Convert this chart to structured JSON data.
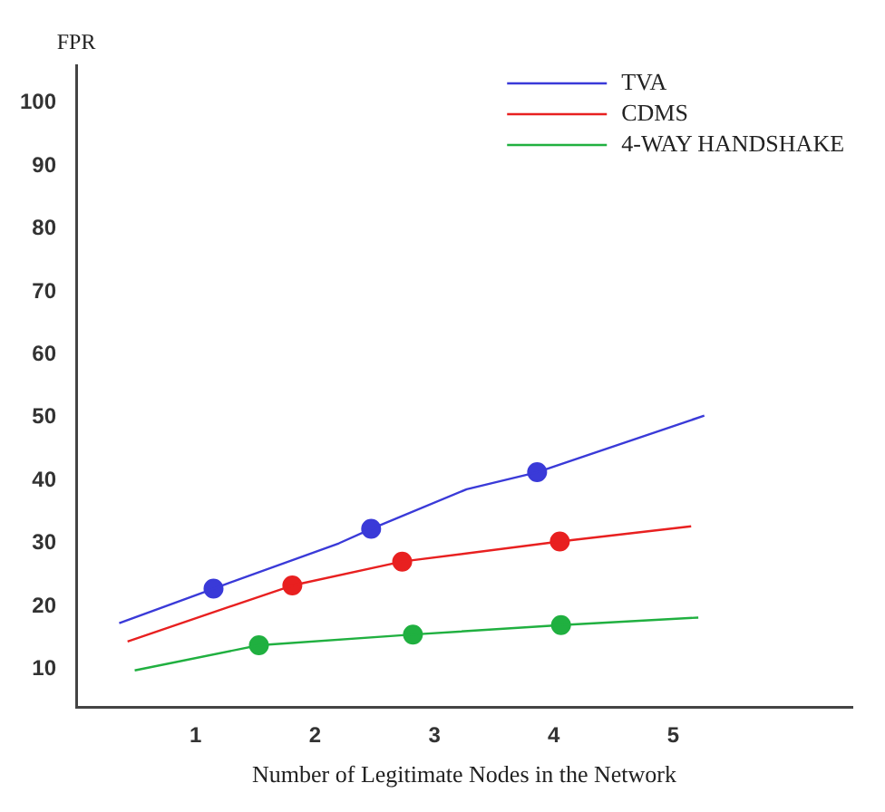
{
  "chart_data": {
    "type": "line",
    "xlabel": "Number of Legitimate Nodes in the Network",
    "ylabel": "FPR",
    "xlim": [
      0,
      6.5
    ],
    "ylim": [
      4,
      106
    ],
    "xticks": [
      1,
      2,
      3,
      4,
      5
    ],
    "yticks": [
      10,
      20,
      30,
      40,
      50,
      60,
      70,
      80,
      90,
      100
    ],
    "grid": false,
    "legend": "top right",
    "series": [
      {
        "name": "TVA",
        "color": "#3a3ad8",
        "marker": "none",
        "x": [
          0.36,
          1.15,
          2.2,
          2.47,
          3.27,
          3.86,
          5.26
        ],
        "values": [
          17.3,
          22.8,
          30.0,
          32.3,
          38.6,
          41.3,
          50.3
        ]
      },
      {
        "name": "CDMS",
        "color": "#e82020",
        "marker": "none",
        "x": [
          0.43,
          1.81,
          2.73,
          4.05,
          5.15
        ],
        "values": [
          14.4,
          23.3,
          27.1,
          30.3,
          32.7
        ]
      },
      {
        "name": "4-WAY HANDSHAKE",
        "color": "#20b040",
        "marker": "none",
        "x": [
          0.49,
          1.53,
          2.82,
          4.06,
          5.21
        ],
        "values": [
          9.8,
          13.8,
          15.5,
          17.0,
          18.2
        ]
      },
      {
        "type": "scatter",
        "color": "#3a3ad8",
        "marker": "circle",
        "x": [
          1.15,
          2.47,
          3.86
        ],
        "values": [
          22.8,
          32.3,
          41.3
        ]
      },
      {
        "type": "scatter",
        "color": "#e82020",
        "marker": "circle",
        "x": [
          1.81,
          2.73,
          4.05
        ],
        "values": [
          23.3,
          27.1,
          30.3
        ]
      },
      {
        "type": "scatter",
        "color": "#20b040",
        "marker": "circle",
        "x": [
          1.53,
          2.82,
          4.06
        ],
        "values": [
          13.8,
          15.5,
          17.0
        ]
      }
    ]
  }
}
